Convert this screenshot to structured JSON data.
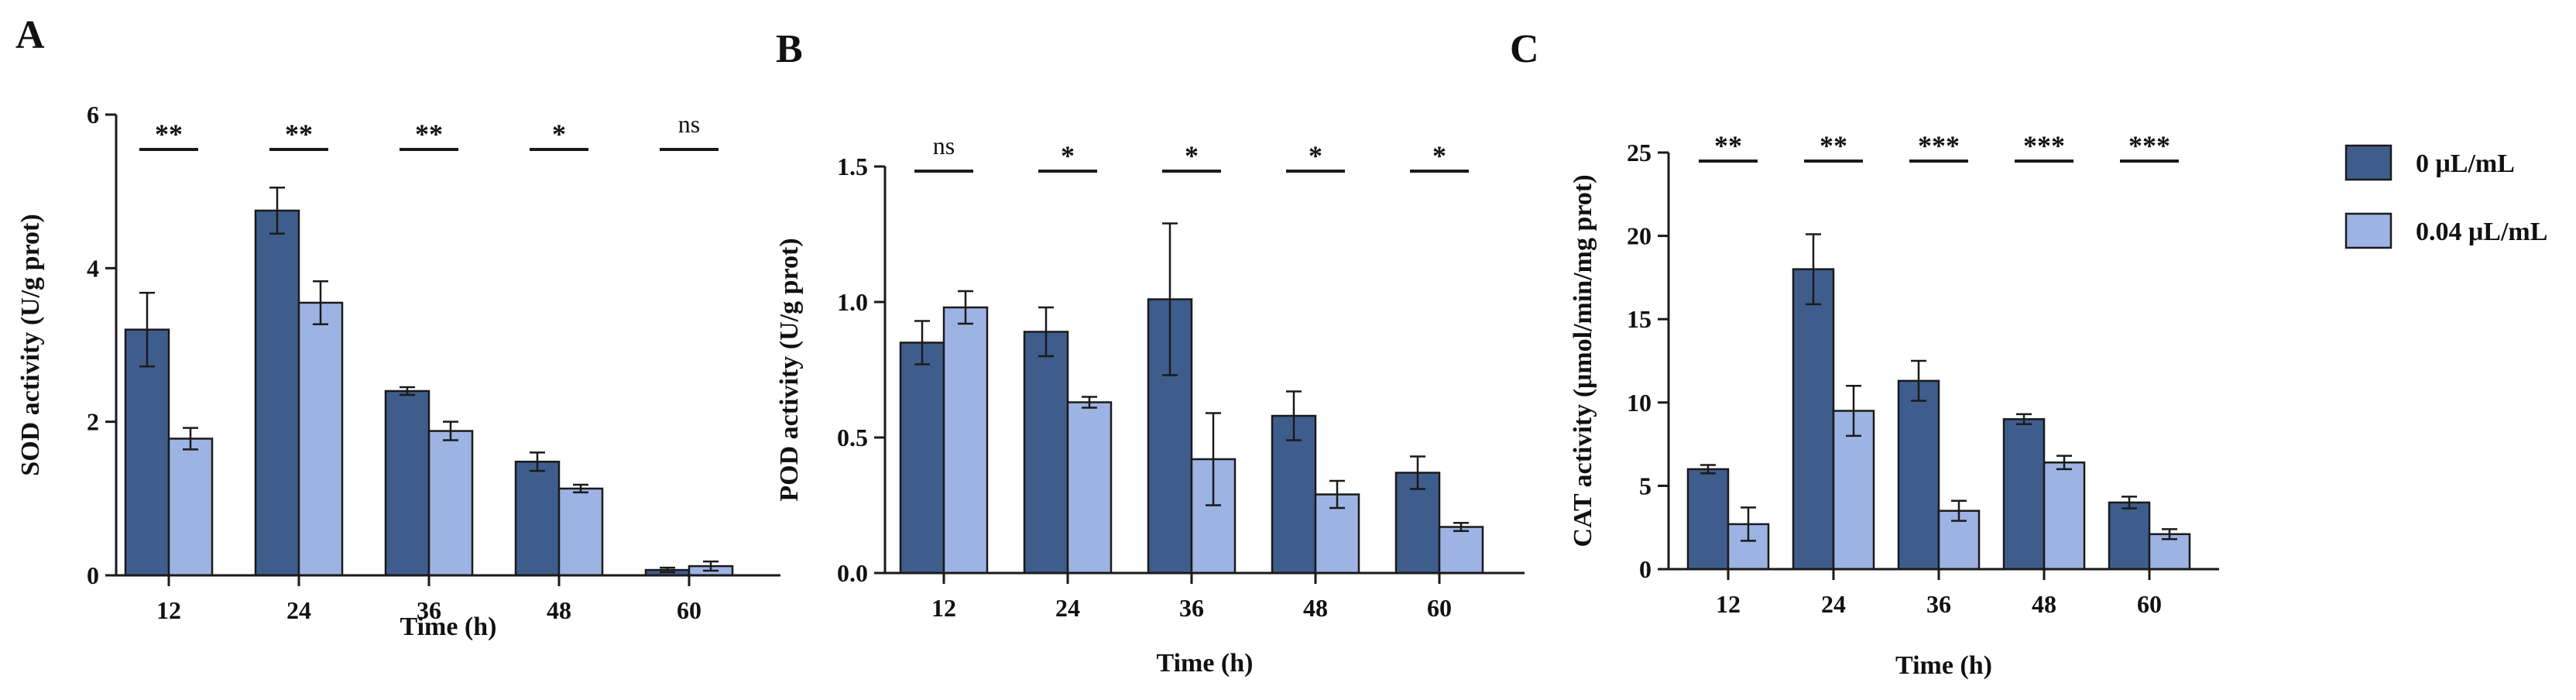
{
  "colors": {
    "control": "#3f5d8c",
    "treated": "#9db3e3",
    "outline": "#1a1a1a"
  },
  "legend": [
    {
      "label": "0 μL/mL",
      "color": "#3f5d8c"
    },
    {
      "label": "0.04 μL/mL",
      "color": "#9db3e3"
    }
  ],
  "chart_data": [
    {
      "panel": "A",
      "type": "bar",
      "categories": [
        "12",
        "24",
        "36",
        "48",
        "60"
      ],
      "xlabel": "Time (h)",
      "ylabel": "SOD activity (U/g prot)",
      "ylim": [
        0,
        6
      ],
      "yticks": [
        "0",
        "2",
        "4",
        "6"
      ],
      "series": [
        {
          "name": "0 μL/mL",
          "values": [
            3.2,
            4.75,
            2.4,
            1.48,
            0.07
          ],
          "errors": [
            0.48,
            0.3,
            0.05,
            0.12,
            0.03
          ]
        },
        {
          "name": "0.04 μL/mL",
          "values": [
            1.78,
            3.55,
            1.88,
            1.13,
            0.12
          ],
          "errors": [
            0.14,
            0.28,
            0.12,
            0.05,
            0.06
          ]
        }
      ],
      "significance": [
        "**",
        "**",
        "**",
        "*",
        "ns"
      ]
    },
    {
      "panel": "B",
      "type": "bar",
      "categories": [
        "12",
        "24",
        "36",
        "48",
        "60"
      ],
      "xlabel": "Time (h)",
      "ylabel": "POD activity (U/g prot)",
      "ylim": [
        0,
        1.5
      ],
      "yticks": [
        "0.0",
        "0.5",
        "1.0",
        "1.5"
      ],
      "series": [
        {
          "name": "0 μL/mL",
          "values": [
            0.85,
            0.89,
            1.01,
            0.58,
            0.37
          ],
          "errors": [
            0.08,
            0.09,
            0.28,
            0.09,
            0.06
          ]
        },
        {
          "name": "0.04 μL/mL",
          "values": [
            0.98,
            0.63,
            0.42,
            0.29,
            0.17
          ],
          "errors": [
            0.06,
            0.02,
            0.17,
            0.05,
            0.015
          ]
        }
      ],
      "significance": [
        "ns",
        "*",
        "*",
        "*",
        "*"
      ]
    },
    {
      "panel": "C",
      "type": "bar",
      "categories": [
        "12",
        "24",
        "36",
        "48",
        "60"
      ],
      "xlabel": "Time (h)",
      "ylabel": "CAT activity (μmol/min/mg prot)",
      "ylim": [
        0,
        25
      ],
      "yticks": [
        "0",
        "5",
        "10",
        "15",
        "20",
        "25"
      ],
      "series": [
        {
          "name": "0 μL/mL",
          "values": [
            6.0,
            18.0,
            11.3,
            9.0,
            4.0
          ],
          "errors": [
            0.25,
            2.1,
            1.2,
            0.3,
            0.35
          ]
        },
        {
          "name": "0.04 μL/mL",
          "values": [
            2.7,
            9.5,
            3.5,
            6.4,
            2.1
          ],
          "errors": [
            1.0,
            1.5,
            0.6,
            0.4,
            0.3
          ]
        }
      ],
      "significance": [
        "**",
        "**",
        "***",
        "***",
        "***"
      ]
    }
  ]
}
